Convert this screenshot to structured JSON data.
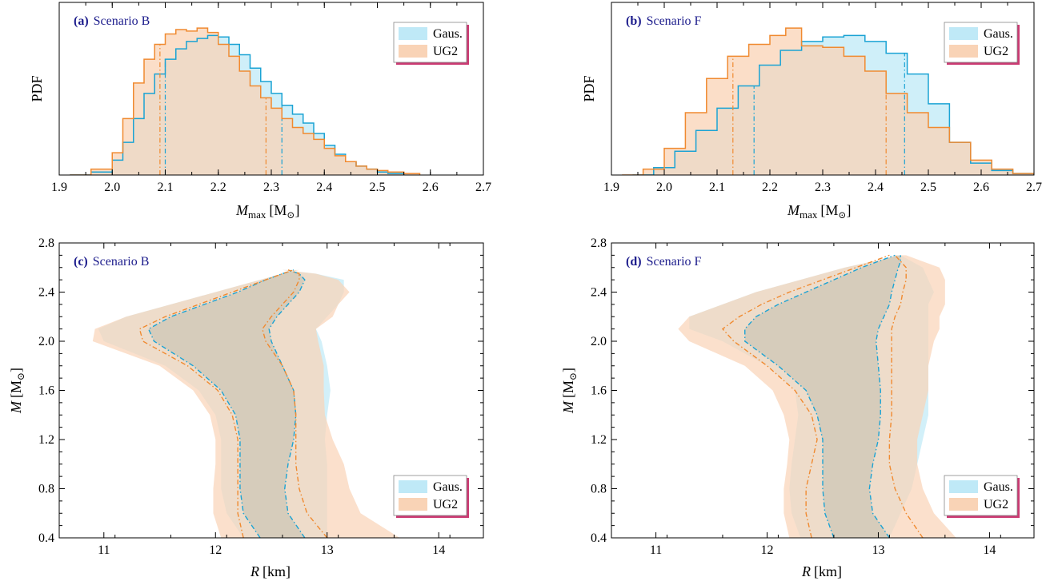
{
  "chart_data": [
    {
      "type": "area",
      "panel_label": "(a)",
      "title": "Scenario B",
      "xlabel": "M_max [M_sun]",
      "ylabel": "PDF",
      "xlim": [
        1.9,
        2.7
      ],
      "xticks": [
        "1.9",
        "2.0",
        "2.1",
        "2.2",
        "2.3",
        "2.4",
        "2.5",
        "2.6",
        "2.7"
      ],
      "legend": [
        "Gaus.",
        "UG2"
      ],
      "legend_position": "top-right",
      "series": [
        {
          "name": "Gaus.",
          "color": "#1ba3d4",
          "fill": "#bfe9f7",
          "x": [
            1.92,
            1.96,
            2.0,
            2.02,
            2.04,
            2.06,
            2.08,
            2.1,
            2.12,
            2.14,
            2.16,
            2.18,
            2.2,
            2.22,
            2.24,
            2.26,
            2.28,
            2.3,
            2.32,
            2.34,
            2.36,
            2.38,
            2.4,
            2.42,
            2.44,
            2.46,
            2.48,
            2.5,
            2.52,
            2.55
          ],
          "y": [
            0.0,
            0.02,
            0.1,
            0.22,
            0.38,
            0.55,
            0.68,
            0.78,
            0.85,
            0.9,
            0.92,
            0.94,
            0.93,
            0.88,
            0.81,
            0.72,
            0.63,
            0.55,
            0.47,
            0.41,
            0.35,
            0.28,
            0.2,
            0.14,
            0.09,
            0.06,
            0.04,
            0.02,
            0.01,
            0.0
          ],
          "ci_68": [
            2.1,
            2.32
          ]
        },
        {
          "name": "UG2",
          "color": "#f08a30",
          "fill": "#f9d3b6",
          "x": [
            1.92,
            1.96,
            2.0,
            2.02,
            2.04,
            2.06,
            2.08,
            2.1,
            2.12,
            2.14,
            2.16,
            2.18,
            2.2,
            2.22,
            2.24,
            2.26,
            2.28,
            2.3,
            2.32,
            2.34,
            2.36,
            2.38,
            2.4,
            2.42,
            2.44,
            2.46,
            2.48,
            2.5,
            2.52,
            2.55,
            2.58
          ],
          "y": [
            0.0,
            0.04,
            0.15,
            0.38,
            0.62,
            0.78,
            0.88,
            0.95,
            0.98,
            0.97,
            0.99,
            0.96,
            0.88,
            0.8,
            0.7,
            0.6,
            0.52,
            0.45,
            0.38,
            0.32,
            0.28,
            0.24,
            0.18,
            0.13,
            0.09,
            0.06,
            0.04,
            0.03,
            0.02,
            0.01,
            0.0
          ],
          "ci_68": [
            2.09,
            2.29
          ]
        }
      ]
    },
    {
      "type": "area",
      "panel_label": "(b)",
      "title": "Scenario F",
      "xlabel": "M_max [M_sun]",
      "ylabel": "PDF",
      "xlim": [
        1.9,
        2.7
      ],
      "xticks": [
        "1.9",
        "2.0",
        "2.1",
        "2.2",
        "2.3",
        "2.4",
        "2.5",
        "2.6",
        "2.7"
      ],
      "legend": [
        "Gaus.",
        "UG2"
      ],
      "legend_position": "top-right",
      "series": [
        {
          "name": "Gaus.",
          "color": "#1ba3d4",
          "fill": "#bfe9f7",
          "x": [
            1.94,
            1.98,
            2.02,
            2.06,
            2.1,
            2.14,
            2.18,
            2.22,
            2.26,
            2.3,
            2.34,
            2.38,
            2.42,
            2.46,
            2.5,
            2.54,
            2.58,
            2.62,
            2.66,
            2.7
          ],
          "y": [
            0.0,
            0.05,
            0.16,
            0.3,
            0.45,
            0.6,
            0.74,
            0.84,
            0.9,
            0.93,
            0.94,
            0.9,
            0.82,
            0.68,
            0.48,
            0.22,
            0.08,
            0.03,
            0.01,
            0.0
          ],
          "ci_68": [
            2.17,
            2.455
          ]
        },
        {
          "name": "UG2",
          "color": "#f08a30",
          "fill": "#f9d3b6",
          "x": [
            1.92,
            1.96,
            2.0,
            2.04,
            2.08,
            2.12,
            2.16,
            2.2,
            2.23,
            2.26,
            2.3,
            2.34,
            2.38,
            2.42,
            2.46,
            2.5,
            2.54,
            2.58,
            2.62,
            2.66,
            2.7
          ],
          "y": [
            0.0,
            0.04,
            0.18,
            0.42,
            0.65,
            0.8,
            0.88,
            0.94,
            0.99,
            0.87,
            0.86,
            0.8,
            0.7,
            0.55,
            0.42,
            0.32,
            0.22,
            0.1,
            0.04,
            0.01,
            0.0
          ],
          "ci_68": [
            2.13,
            2.42
          ]
        }
      ]
    },
    {
      "type": "area",
      "panel_label": "(c)",
      "title": "Scenario B",
      "xlabel": "R [km]",
      "ylabel": "M [M_sun]",
      "xlim": [
        10.6,
        14.4
      ],
      "ylim": [
        0.4,
        2.8
      ],
      "xticks": [
        "11",
        "12",
        "13",
        "14"
      ],
      "yticks": [
        "0.4",
        "0.8",
        "1.2",
        "1.6",
        "2.0",
        "2.4",
        "2.8"
      ],
      "legend": [
        "Gaus.",
        "UG2"
      ],
      "legend_position": "bottom-right",
      "mass": [
        0.4,
        0.6,
        0.8,
        1.0,
        1.2,
        1.4,
        1.6,
        1.8,
        2.0,
        2.1,
        2.2,
        2.3,
        2.4,
        2.5,
        2.55,
        2.58
      ],
      "series": [
        {
          "name": "Gaus.",
          "color": "#1ba3d4",
          "fill": "#bfe9f7",
          "band_95": {
            "left": [
              12.25,
              12.1,
              12.05,
              12.05,
              12.05,
              12.0,
              11.85,
              11.55,
              11.0,
              10.95,
              11.2,
              11.6,
              12.0,
              12.4,
              12.6,
              12.7
            ],
            "right": [
              13.0,
              13.0,
              13.0,
              13.0,
              12.98,
              13.0,
              13.03,
              13.0,
              12.95,
              12.9,
              13.0,
              13.1,
              13.15,
              13.15,
              12.9,
              12.6
            ]
          },
          "band_68": {
            "left": [
              12.4,
              12.25,
              12.22,
              12.22,
              12.22,
              12.18,
              12.05,
              11.8,
              11.45,
              11.4,
              11.6,
              11.9,
              12.2,
              12.45,
              12.6,
              12.7
            ],
            "right": [
              12.8,
              12.65,
              12.62,
              12.65,
              12.7,
              12.72,
              12.7,
              12.6,
              12.5,
              12.48,
              12.55,
              12.65,
              12.75,
              12.8,
              12.75,
              12.65
            ]
          }
        },
        {
          "name": "UG2",
          "color": "#f08a30",
          "fill": "#f9d3b6",
          "band_95": {
            "left": [
              12.05,
              11.98,
              11.98,
              12.0,
              12.0,
              11.95,
              11.8,
              11.5,
              10.9,
              10.92,
              11.2,
              11.6,
              12.0,
              12.4,
              12.6,
              12.75
            ],
            "right": [
              13.65,
              13.3,
              13.2,
              13.15,
              13.05,
              12.98,
              12.97,
              12.97,
              12.92,
              12.9,
              13.05,
              13.1,
              13.2,
              13.1,
              12.9,
              12.6
            ]
          },
          "band_68": {
            "left": [
              12.25,
              12.2,
              12.2,
              12.2,
              12.2,
              12.15,
              12.02,
              11.75,
              11.35,
              11.32,
              11.55,
              11.85,
              12.15,
              12.45,
              12.6,
              12.7
            ],
            "right": [
              13.0,
              12.82,
              12.75,
              12.72,
              12.72,
              12.72,
              12.7,
              12.6,
              12.45,
              12.42,
              12.5,
              12.6,
              12.7,
              12.75,
              12.75,
              12.65
            ]
          }
        }
      ]
    },
    {
      "type": "area",
      "panel_label": "(d)",
      "title": "Scenario F",
      "xlabel": "R [km]",
      "ylabel": "M [M_sun]",
      "xlim": [
        10.6,
        14.4
      ],
      "ylim": [
        0.4,
        2.8
      ],
      "xticks": [
        "11",
        "12",
        "13",
        "14"
      ],
      "yticks": [
        "0.4",
        "0.8",
        "1.2",
        "1.6",
        "2.0",
        "2.4",
        "2.8"
      ],
      "legend": [
        "Gaus.",
        "UG2"
      ],
      "legend_position": "bottom-right",
      "mass": [
        0.4,
        0.6,
        0.8,
        1.0,
        1.2,
        1.4,
        1.6,
        1.8,
        2.0,
        2.1,
        2.2,
        2.3,
        2.4,
        2.5,
        2.6,
        2.65,
        2.7
      ],
      "series": [
        {
          "name": "Gaus.",
          "color": "#1ba3d4",
          "fill": "#bfe9f7",
          "band_95": {
            "left": [
              12.3,
              12.22,
              12.2,
              12.22,
              12.25,
              12.28,
              12.25,
              12.0,
              11.6,
              11.3,
              11.3,
              11.6,
              11.9,
              12.3,
              12.7,
              12.95,
              13.2
            ],
            "right": [
              13.1,
              13.2,
              13.3,
              13.35,
              13.4,
              13.45,
              13.45,
              13.45,
              13.45,
              13.45,
              13.45,
              13.45,
              13.5,
              13.45,
              13.4,
              13.3,
              13.2
            ]
          },
          "band_68": {
            "left": [
              12.6,
              12.52,
              12.5,
              12.5,
              12.5,
              12.45,
              12.35,
              12.1,
              11.8,
              11.8,
              11.9,
              12.1,
              12.35,
              12.6,
              12.85,
              13.0,
              13.15
            ],
            "right": [
              13.1,
              12.95,
              12.92,
              12.95,
              13.0,
              13.02,
              13.02,
              13.0,
              12.98,
              13.0,
              13.05,
              13.1,
              13.12,
              13.15,
              13.18,
              13.2,
              13.2
            ]
          }
        },
        {
          "name": "UG2",
          "color": "#f08a30",
          "fill": "#f9d3b6",
          "band_95": {
            "left": [
              12.2,
              12.15,
              12.15,
              12.18,
              12.2,
              12.15,
              12.05,
              11.8,
              11.3,
              11.2,
              11.3,
              11.6,
              11.9,
              12.3,
              12.7,
              12.95,
              13.2
            ],
            "right": [
              13.7,
              13.5,
              13.4,
              13.35,
              13.35,
              13.4,
              13.45,
              13.45,
              13.5,
              13.55,
              13.55,
              13.6,
              13.6,
              13.6,
              13.55,
              13.4,
              13.25
            ]
          },
          "band_68": {
            "left": [
              12.4,
              12.35,
              12.35,
              12.4,
              12.45,
              12.4,
              12.25,
              12.0,
              11.7,
              11.6,
              11.75,
              11.95,
              12.2,
              12.5,
              12.8,
              12.95,
              13.1
            ],
            "right": [
              13.4,
              13.25,
              13.15,
              13.1,
              13.1,
              13.12,
              13.12,
              13.12,
              13.12,
              13.12,
              13.15,
              13.2,
              13.22,
              13.25,
              13.25,
              13.2,
              13.15
            ]
          }
        }
      ]
    }
  ]
}
